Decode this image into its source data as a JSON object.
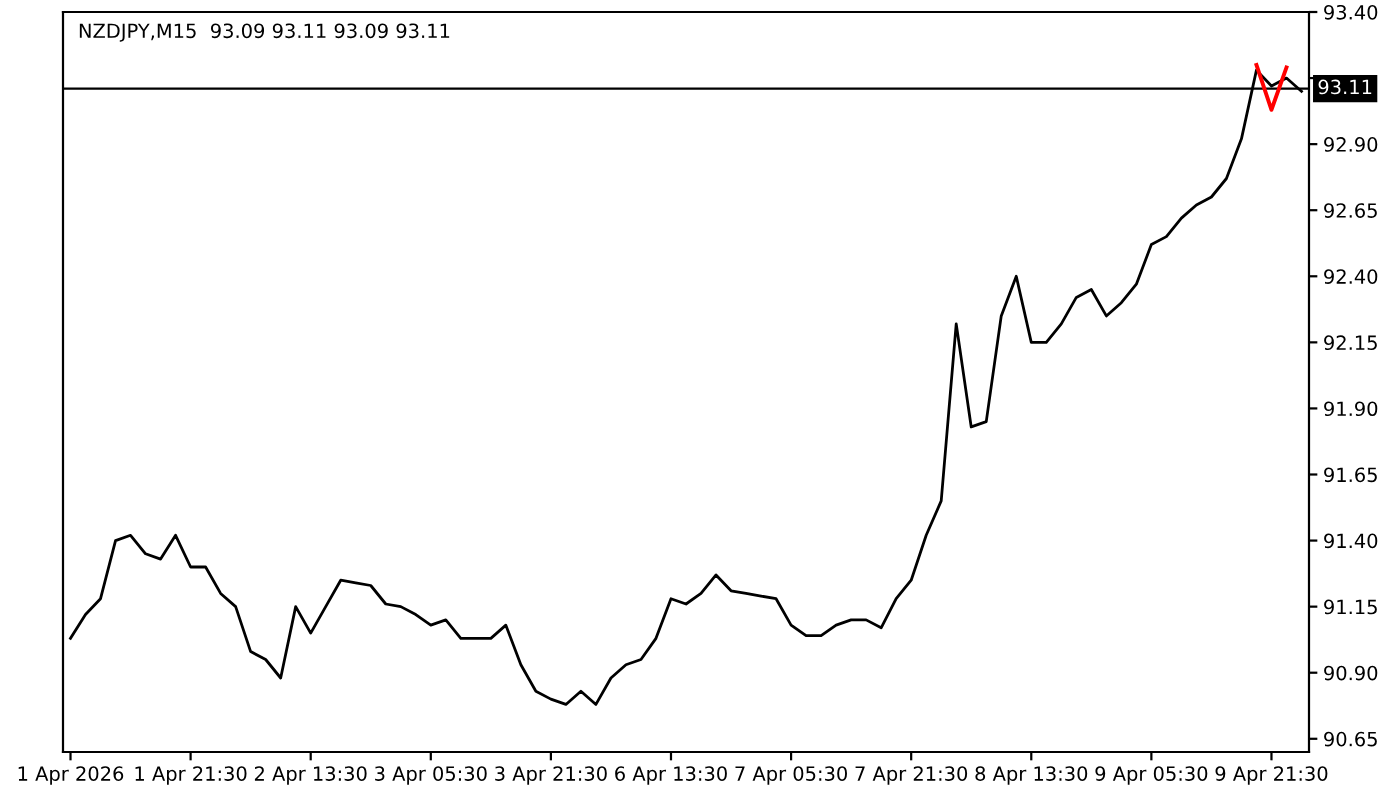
{
  "chart_data": {
    "type": "line",
    "title": "NZDJPY,M15  93.09 93.11 93.09 93.11",
    "categories": [
      "1 Apr 2026",
      null,
      null,
      null,
      null,
      null,
      null,
      null,
      "1 Apr 21:30",
      null,
      null,
      null,
      null,
      null,
      null,
      null,
      "2 Apr 13:30",
      null,
      null,
      null,
      null,
      null,
      null,
      null,
      "3 Apr 05:30",
      null,
      null,
      null,
      null,
      null,
      null,
      null,
      "3 Apr 21:30",
      null,
      null,
      null,
      null,
      null,
      null,
      null,
      "6 Apr 13:30",
      null,
      null,
      null,
      null,
      null,
      null,
      null,
      "7 Apr 05:30",
      null,
      null,
      null,
      null,
      null,
      null,
      null,
      "7 Apr 21:30",
      null,
      null,
      null,
      null,
      null,
      null,
      null,
      "8 Apr 13:30",
      null,
      null,
      null,
      null,
      null,
      null,
      null,
      "9 Apr 05:30",
      null,
      null,
      null,
      null,
      null,
      null,
      null,
      "9 Apr 21:30",
      null,
      null
    ],
    "series": [
      {
        "color": "#000000",
        "values": [
          91.03,
          91.12,
          91.18,
          91.4,
          91.42,
          91.35,
          91.33,
          91.42,
          91.3,
          91.3,
          91.2,
          91.15,
          90.98,
          90.95,
          90.88,
          91.15,
          91.05,
          91.15,
          91.25,
          91.24,
          91.23,
          91.16,
          91.15,
          91.12,
          91.08,
          91.1,
          91.03,
          91.03,
          91.03,
          91.08,
          90.93,
          90.83,
          90.8,
          90.78,
          90.83,
          90.78,
          90.88,
          90.93,
          90.95,
          91.03,
          91.18,
          91.16,
          91.2,
          91.27,
          91.21,
          91.2,
          91.19,
          91.18,
          91.08,
          91.04,
          91.04,
          91.08,
          91.1,
          91.1,
          91.07,
          91.18,
          91.25,
          91.42,
          91.55,
          92.22,
          91.83,
          91.85,
          92.25,
          92.4,
          92.15,
          92.15,
          92.22,
          92.32,
          92.35,
          92.25,
          92.3,
          92.37,
          92.52,
          92.55,
          92.62,
          92.67,
          92.7,
          92.77,
          92.92,
          93.18,
          93.12,
          93.15,
          93.1
        ]
      },
      {
        "color": "#ff0000",
        "values": [
          null,
          null,
          null,
          null,
          null,
          null,
          null,
          null,
          null,
          null,
          null,
          null,
          null,
          null,
          null,
          null,
          null,
          null,
          null,
          null,
          null,
          null,
          null,
          null,
          null,
          null,
          null,
          null,
          null,
          null,
          null,
          null,
          null,
          null,
          null,
          null,
          null,
          null,
          null,
          null,
          null,
          null,
          null,
          null,
          null,
          null,
          null,
          null,
          null,
          null,
          null,
          null,
          null,
          null,
          null,
          null,
          null,
          null,
          null,
          null,
          null,
          null,
          null,
          null,
          null,
          null,
          null,
          null,
          null,
          null,
          null,
          null,
          null,
          null,
          null,
          null,
          null,
          null,
          null,
          93.2,
          93.03,
          93.19,
          null
        ]
      }
    ],
    "ylim": [
      90.6,
      93.4
    ],
    "yticks": [
      {
        "value": 90.65,
        "label": "90.65"
      },
      {
        "value": 90.9,
        "label": "90.90"
      },
      {
        "value": 91.15,
        "label": "91.15"
      },
      {
        "value": 91.4,
        "label": "91.40"
      },
      {
        "value": 91.65,
        "label": "91.65"
      },
      {
        "value": 91.9,
        "label": "91.90"
      },
      {
        "value": 92.15,
        "label": "92.15"
      },
      {
        "value": 92.4,
        "label": "92.40"
      },
      {
        "value": 92.65,
        "label": "92.65"
      },
      {
        "value": 92.9,
        "label": "92.90"
      },
      {
        "value": 93.15,
        "label": null
      },
      {
        "value": 93.4,
        "label": "93.40"
      }
    ],
    "ref_lines": [
      {
        "axis": "y",
        "value": 93.11,
        "label": "93.11",
        "color": "#000000"
      }
    ],
    "grid": false
  }
}
